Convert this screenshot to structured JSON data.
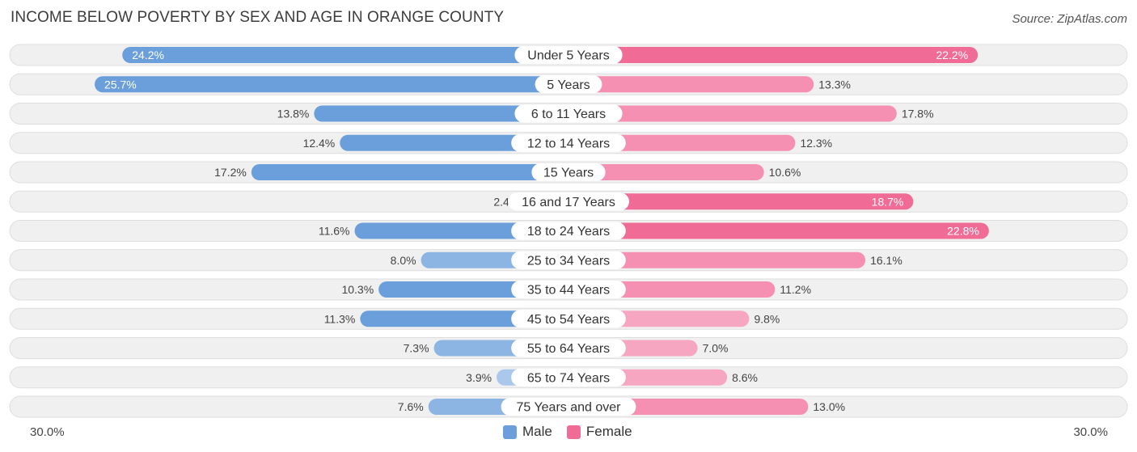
{
  "title": "INCOME BELOW POVERTY BY SEX AND AGE IN ORANGE COUNTY",
  "source": "Source: ZipAtlas.com",
  "colors": {
    "male": "#6a9fdc",
    "male_light": "#a9c8ec",
    "female": "#f06b96",
    "female_light": "#f6a6c0",
    "row_bg": "#f0f0f0"
  },
  "chart_data": {
    "type": "bar",
    "orientation": "horizontal-diverging",
    "title": "INCOME BELOW POVERTY BY SEX AND AGE IN ORANGE COUNTY",
    "categories": [
      "Under 5 Years",
      "5 Years",
      "6 to 11 Years",
      "12 to 14 Years",
      "15 Years",
      "16 and 17 Years",
      "18 to 24 Years",
      "25 to 34 Years",
      "35 to 44 Years",
      "45 to 54 Years",
      "55 to 64 Years",
      "65 to 74 Years",
      "75 Years and over"
    ],
    "series": [
      {
        "name": "Male",
        "values": [
          24.2,
          25.7,
          13.8,
          12.4,
          17.2,
          2.4,
          11.6,
          8.0,
          10.3,
          11.3,
          7.3,
          3.9,
          7.6
        ],
        "labels": [
          "24.2%",
          "25.7%",
          "13.8%",
          "12.4%",
          "17.2%",
          "2.4%",
          "11.6%",
          "8.0%",
          "10.3%",
          "11.3%",
          "7.3%",
          "3.9%",
          "7.6%"
        ]
      },
      {
        "name": "Female",
        "values": [
          22.2,
          13.3,
          17.8,
          12.3,
          10.6,
          18.7,
          22.8,
          16.1,
          11.2,
          9.8,
          7.0,
          8.6,
          13.0
        ],
        "labels": [
          "22.2%",
          "13.3%",
          "17.8%",
          "12.3%",
          "10.6%",
          "18.7%",
          "22.8%",
          "16.1%",
          "11.2%",
          "9.8%",
          "7.0%",
          "8.6%",
          "13.0%"
        ]
      }
    ],
    "xlim": [
      -30,
      30
    ],
    "axis_left_label": "30.0%",
    "axis_right_label": "30.0%",
    "legend": [
      "Male",
      "Female"
    ]
  }
}
